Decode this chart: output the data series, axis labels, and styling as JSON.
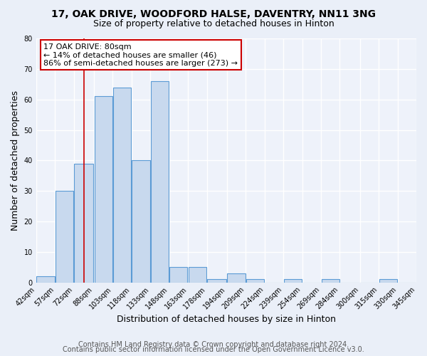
{
  "title1": "17, OAK DRIVE, WOODFORD HALSE, DAVENTRY, NN11 3NG",
  "title2": "Size of property relative to detached houses in Hinton",
  "xlabel": "Distribution of detached houses by size in Hinton",
  "ylabel": "Number of detached properties",
  "bins": [
    42,
    57,
    72,
    88,
    103,
    118,
    133,
    148,
    163,
    178,
    194,
    209,
    224,
    239,
    254,
    269,
    284,
    300,
    315,
    330,
    345
  ],
  "bar_heights": [
    2,
    30,
    39,
    61,
    64,
    40,
    66,
    5,
    5,
    1,
    3,
    1,
    0,
    1,
    0,
    1,
    0,
    0,
    1,
    0
  ],
  "bar_color": "#c8d9ee",
  "bar_edgecolor": "#5b9bd5",
  "x_tick_labels": [
    "42sqm",
    "57sqm",
    "72sqm",
    "88sqm",
    "103sqm",
    "118sqm",
    "133sqm",
    "148sqm",
    "163sqm",
    "178sqm",
    "194sqm",
    "209sqm",
    "224sqm",
    "239sqm",
    "254sqm",
    "269sqm",
    "284sqm",
    "300sqm",
    "315sqm",
    "330sqm",
    "345sqm"
  ],
  "ylim": [
    0,
    80
  ],
  "yticks": [
    0,
    10,
    20,
    30,
    40,
    50,
    60,
    70,
    80
  ],
  "property_line_x": 80,
  "property_line_color": "#cc0000",
  "annotation_text": "17 OAK DRIVE: 80sqm\n← 14% of detached houses are smaller (46)\n86% of semi-detached houses are larger (273) →",
  "annotation_box_color": "#ffffff",
  "annotation_box_edgecolor": "#cc0000",
  "footer1": "Contains HM Land Registry data © Crown copyright and database right 2024.",
  "footer2": "Contains public sector information licensed under the Open Government Licence v3.0.",
  "bg_color": "#eaeff8",
  "plot_bg_color": "#eef2fa",
  "grid_color": "#ffffff",
  "title1_fontsize": 10,
  "title2_fontsize": 9,
  "axis_label_fontsize": 9,
  "tick_fontsize": 7,
  "annotation_fontsize": 8,
  "footer_fontsize": 7
}
